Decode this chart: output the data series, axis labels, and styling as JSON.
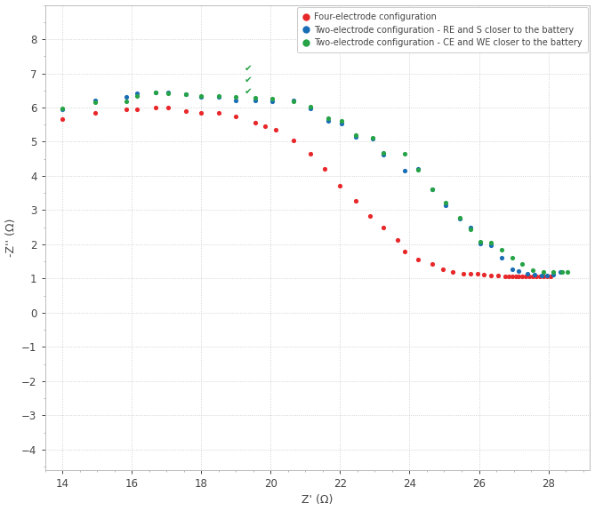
{
  "title": "",
  "xlabel": "Z' (Ω)",
  "ylabel": "-Z'' (Ω)",
  "xlim": [
    13.5,
    29.2
  ],
  "ylim": [
    -4.6,
    9.0
  ],
  "xticks": [
    14,
    16,
    18,
    20,
    22,
    24,
    26,
    28
  ],
  "yticks": [
    -4,
    -3,
    -2,
    -1,
    0,
    1,
    2,
    3,
    4,
    5,
    6,
    7,
    8
  ],
  "grid_color": "#c8c8c8",
  "background_color": "#ffffff",
  "legend_entries": [
    "Four-electrode configuration",
    "Two-electrode configuration - RE and S closer to the battery",
    "Two-electrode configuration - CE and WE closer to the battery"
  ],
  "series_colors": [
    "#e8272a",
    "#1a6eb5",
    "#27a347"
  ],
  "checkmark_color": "#27a347",
  "red_x": [
    14.0,
    14.95,
    15.85,
    16.15,
    16.7,
    17.05,
    17.55,
    18.0,
    18.5,
    19.0,
    19.55,
    19.85,
    20.15,
    20.65,
    21.15,
    21.55,
    22.0,
    22.45,
    22.85,
    23.25,
    23.65,
    23.85,
    24.25,
    24.65,
    24.95,
    25.25,
    25.55,
    25.75,
    25.95,
    26.15,
    26.35,
    26.55,
    26.75,
    26.85,
    26.95,
    27.05,
    27.15,
    27.25,
    27.35,
    27.45,
    27.55,
    27.65,
    27.75,
    27.85,
    27.95,
    28.05
  ],
  "red_y": [
    5.65,
    5.85,
    5.95,
    5.95,
    6.0,
    6.0,
    5.9,
    5.85,
    5.85,
    5.75,
    5.55,
    5.45,
    5.35,
    5.05,
    4.65,
    4.2,
    3.7,
    3.28,
    2.82,
    2.48,
    2.12,
    1.78,
    1.55,
    1.42,
    1.28,
    1.18,
    1.15,
    1.15,
    1.15,
    1.12,
    1.1,
    1.08,
    1.06,
    1.05,
    1.05,
    1.05,
    1.05,
    1.05,
    1.05,
    1.05,
    1.05,
    1.05,
    1.05,
    1.05,
    1.05,
    1.05
  ],
  "blue_x": [
    14.0,
    14.95,
    15.85,
    16.15,
    16.7,
    17.05,
    17.55,
    18.0,
    18.5,
    19.0,
    19.55,
    20.05,
    20.65,
    21.15,
    21.65,
    22.05,
    22.45,
    22.95,
    23.25,
    23.85,
    24.25,
    24.65,
    25.05,
    25.45,
    25.75,
    26.05,
    26.35,
    26.65,
    26.95,
    27.15,
    27.4,
    27.6,
    27.8,
    27.95,
    28.15,
    28.35
  ],
  "blue_y": [
    5.95,
    6.2,
    6.3,
    6.42,
    6.45,
    6.45,
    6.38,
    6.32,
    6.3,
    6.22,
    6.2,
    6.18,
    6.22,
    5.98,
    5.6,
    5.52,
    5.15,
    5.1,
    4.62,
    4.15,
    4.2,
    3.6,
    3.15,
    2.75,
    2.5,
    2.02,
    1.98,
    1.62,
    1.28,
    1.22,
    1.15,
    1.12,
    1.1,
    1.1,
    1.12,
    1.2
  ],
  "green_x": [
    14.0,
    14.95,
    15.85,
    16.15,
    16.7,
    17.05,
    17.55,
    18.0,
    18.5,
    19.0,
    19.55,
    20.05,
    20.65,
    21.15,
    21.65,
    22.05,
    22.45,
    22.95,
    23.25,
    23.85,
    24.25,
    24.65,
    25.05,
    25.45,
    25.75,
    26.05,
    26.35,
    26.65,
    26.95,
    27.25,
    27.55,
    27.85,
    28.15,
    28.4,
    28.55
  ],
  "green_y": [
    5.98,
    6.15,
    6.18,
    6.35,
    6.45,
    6.42,
    6.38,
    6.35,
    6.35,
    6.32,
    6.28,
    6.25,
    6.18,
    6.02,
    5.68,
    5.6,
    5.2,
    5.12,
    4.68,
    4.65,
    4.18,
    3.6,
    3.22,
    2.78,
    2.45,
    2.08,
    2.05,
    1.85,
    1.62,
    1.42,
    1.25,
    1.2,
    1.18,
    1.18,
    1.2
  ]
}
